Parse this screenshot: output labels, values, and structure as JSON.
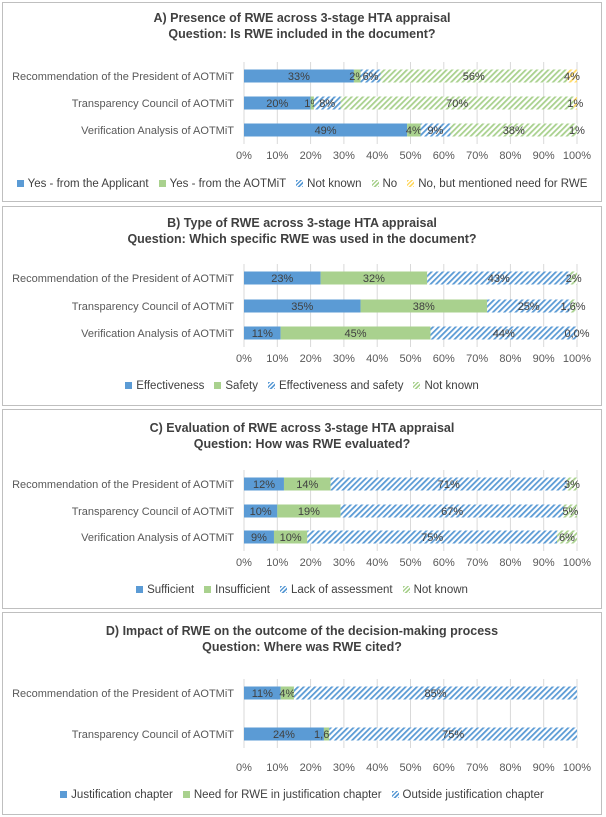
{
  "panels": [
    {
      "title": "A) Presence of RWE across 3-stage HTA appraisal",
      "subtitle": "Question: Is RWE included in the document?",
      "chart_data": {
        "type": "bar",
        "orientation": "horizontal",
        "stacked": true,
        "categories": [
          "Recommendation of the President of AOTMiT",
          "Transparency Council of AOTMiT",
          "Verification Analysis of AOTMiT"
        ],
        "series": [
          {
            "name": "Yes - from the Applicant",
            "values": [
              33,
              20,
              49
            ],
            "labels": [
              "33%",
              "20%",
              "49%"
            ],
            "color": "#5b9bd5",
            "pattern": "solid"
          },
          {
            "name": "Yes - from the AOTMiT",
            "values": [
              2,
              1,
              4
            ],
            "labels": [
              "2%",
              "1%",
              "4%"
            ],
            "color": "#a9d18e",
            "pattern": "solid"
          },
          {
            "name": "Not known",
            "values": [
              6,
              8,
              9
            ],
            "labels": [
              "6%",
              "8%",
              "9%"
            ],
            "color": "#5b9bd5",
            "pattern": "hatch"
          },
          {
            "name": "No",
            "values": [
              56,
              70,
              38
            ],
            "labels": [
              "56%",
              "70%",
              "38%"
            ],
            "color": "#a9d18e",
            "pattern": "hatch"
          },
          {
            "name": "No, but mentioned need for RWE",
            "values": [
              4,
              1,
              1
            ],
            "labels": [
              "4%",
              "1%",
              "1%"
            ],
            "color": "#ffd966",
            "pattern": "hatch"
          }
        ],
        "xlim": [
          0,
          100
        ],
        "xticks": [
          "0%",
          "10%",
          "20%",
          "30%",
          "40%",
          "50%",
          "60%",
          "70%",
          "80%",
          "90%",
          "100%"
        ],
        "grid": true,
        "legend": "bottom"
      }
    },
    {
      "title": "B) Type of RWE across 3-stage HTA appraisal",
      "subtitle": "Question: Which specific RWE was used in the document?",
      "chart_data": {
        "type": "bar",
        "orientation": "horizontal",
        "stacked": true,
        "categories": [
          "Recommendation of the President of AOTMiT",
          "Transparency Council of AOTMiT",
          "Verification Analysis of AOTMiT"
        ],
        "series": [
          {
            "name": "Effectiveness",
            "values": [
              23,
              35,
              11
            ],
            "labels": [
              "23%",
              "35%",
              "11%"
            ],
            "color": "#5b9bd5",
            "pattern": "solid"
          },
          {
            "name": "Safety",
            "values": [
              32,
              38,
              45
            ],
            "labels": [
              "32%",
              "38%",
              "45%"
            ],
            "color": "#a9d18e",
            "pattern": "solid"
          },
          {
            "name": "Effectiveness and safety",
            "values": [
              43,
              25,
              44
            ],
            "labels": [
              "43%",
              "25%",
              "44%"
            ],
            "color": "#5b9bd5",
            "pattern": "hatch"
          },
          {
            "name": "Not known",
            "values": [
              2,
              1.6,
              0
            ],
            "labels": [
              "2%",
              "1,6%",
              "0,0%"
            ],
            "color": "#a9d18e",
            "pattern": "hatch"
          }
        ],
        "xlim": [
          0,
          100
        ],
        "xticks": [
          "0%",
          "10%",
          "20%",
          "30%",
          "40%",
          "50%",
          "60%",
          "70%",
          "80%",
          "90%",
          "100%"
        ],
        "grid": true,
        "legend": "bottom"
      }
    },
    {
      "title": "C) Evaluation  of RWE across 3-stage HTA appraisal",
      "subtitle": "Question: How was RWE evaluated?",
      "chart_data": {
        "type": "bar",
        "orientation": "horizontal",
        "stacked": true,
        "categories": [
          "Recommendation of the President of AOTMiT",
          "Transparency Council of AOTMiT",
          "Verification Analysis of AOTMiT"
        ],
        "series": [
          {
            "name": "Sufficient",
            "values": [
              12,
              10,
              9
            ],
            "labels": [
              "12%",
              "10%",
              "9%"
            ],
            "color": "#5b9bd5",
            "pattern": "solid"
          },
          {
            "name": "Insufficient",
            "values": [
              14,
              19,
              10
            ],
            "labels": [
              "14%",
              "19%",
              "10%"
            ],
            "color": "#a9d18e",
            "pattern": "solid"
          },
          {
            "name": "Lack of assessment",
            "values": [
              71,
              67,
              75
            ],
            "labels": [
              "71%",
              "67%",
              "75%"
            ],
            "color": "#5b9bd5",
            "pattern": "hatch"
          },
          {
            "name": "Not known",
            "values": [
              3,
              5,
              6
            ],
            "labels": [
              "3%",
              "5%",
              "6%"
            ],
            "color": "#a9d18e",
            "pattern": "hatch"
          }
        ],
        "xlim": [
          0,
          100
        ],
        "xticks": [
          "0%",
          "10%",
          "20%",
          "30%",
          "40%",
          "50%",
          "60%",
          "70%",
          "80%",
          "90%",
          "100%"
        ],
        "grid": true,
        "legend": "bottom"
      }
    },
    {
      "title": "D) Impact of RWE on the outcome of the decision-making process",
      "subtitle": "Question: Where was RWE cited?",
      "chart_data": {
        "type": "bar",
        "orientation": "horizontal",
        "stacked": true,
        "categories": [
          "Recommendation of the President of AOTMiT",
          "Transparency Council of AOTMiT"
        ],
        "series": [
          {
            "name": "Justification chapter",
            "values": [
              11,
              24
            ],
            "labels": [
              "11%",
              "24%"
            ],
            "color": "#5b9bd5",
            "pattern": "solid"
          },
          {
            "name": "Need for RWE in justification chapter",
            "values": [
              4,
              1.6
            ],
            "labels": [
              "4%",
              "1,6%"
            ],
            "color": "#a9d18e",
            "pattern": "solid"
          },
          {
            "name": "Outside justification chapter",
            "values": [
              85,
              75
            ],
            "labels": [
              "85%",
              "75%"
            ],
            "color": "#5b9bd5",
            "pattern": "hatch"
          }
        ],
        "xlim": [
          0,
          100
        ],
        "xticks": [
          "0%",
          "10%",
          "20%",
          "30%",
          "40%",
          "50%",
          "60%",
          "70%",
          "80%",
          "90%",
          "100%"
        ],
        "grid": true,
        "legend": "bottom"
      }
    }
  ]
}
